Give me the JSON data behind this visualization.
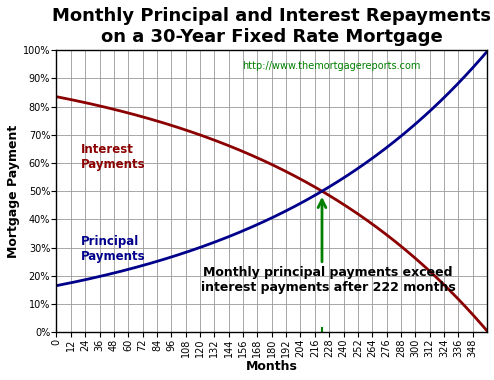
{
  "title_line1": "Monthly Principal and Interest Repayments",
  "title_line2": "on a 30-Year Fixed Rate Mortgage",
  "xlabel": "Months",
  "ylabel": "Mortgage Payment",
  "url_text": "http://www.themortgagereports.com",
  "url_color": "#008000",
  "interest_color": "#8B0000",
  "principal_color": "#00008B",
  "arrow_color": "#008000",
  "annotation_text_1": "Monthly principal payments exceed",
  "annotation_text_2": "interest payments after 222 months",
  "annotation_fontsize": 9,
  "crossover_month": 222,
  "total_months": 360,
  "interest_label": "Interest\nPayments",
  "principal_label": "Principal\nPayments",
  "interest_label_color": "#8B0000",
  "principal_label_color": "#00008B",
  "background_color": "#ffffff",
  "grid_color": "#999999",
  "title_fontsize": 13,
  "axis_label_fontsize": 9,
  "tick_fontsize": 7,
  "rate": 0.005,
  "ylim": [
    0,
    1.0
  ],
  "xlim": [
    0,
    360
  ]
}
